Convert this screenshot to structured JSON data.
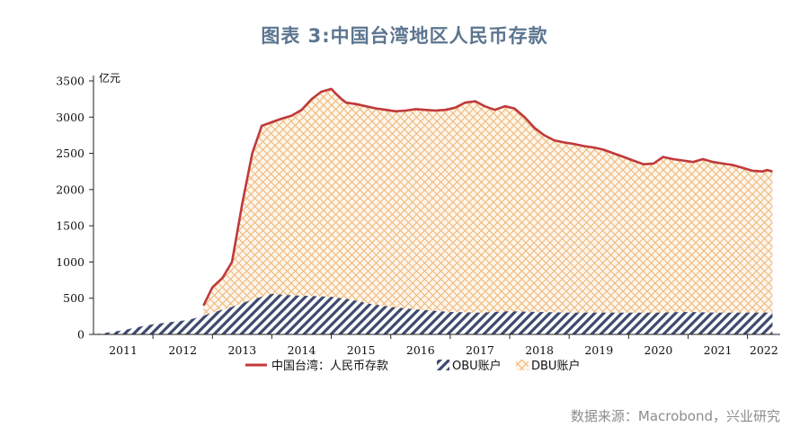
{
  "title": "图表 3:中国台湾地区人民币存款",
  "source": "数据来源：Macrobond，兴业研究",
  "colors": {
    "total": "#c0393b",
    "obu": "#3e4a6e",
    "dbu": "#f0b878",
    "axis": "#222222"
  },
  "chart_data": {
    "type": "area",
    "ylabel": "亿元",
    "ylim": [
      0,
      3500
    ],
    "yticks": [
      0,
      500,
      1000,
      1500,
      2000,
      2500,
      3000,
      3500
    ],
    "xlim": [
      2011.0,
      2022.55
    ],
    "xtick_labels": [
      "2011",
      "2012",
      "2013",
      "2014",
      "2015",
      "2016",
      "2017",
      "2018",
      "2019",
      "2020",
      "2021",
      "2022"
    ],
    "legend": [
      "中国台湾：人民币存款",
      "OBU账户",
      "DBU账户"
    ],
    "legend_position": "bottom",
    "total_deposits": {
      "name": "中国台湾：人民币存款",
      "x": [
        2012.85,
        2013.0,
        2013.17,
        2013.33,
        2013.5,
        2013.67,
        2013.83,
        2014.0,
        2014.17,
        2014.33,
        2014.5,
        2014.67,
        2014.83,
        2015.0,
        2015.08,
        2015.17,
        2015.25,
        2015.42,
        2015.58,
        2015.75,
        2015.92,
        2016.08,
        2016.25,
        2016.42,
        2016.58,
        2016.75,
        2016.92,
        2017.08,
        2017.25,
        2017.42,
        2017.58,
        2017.75,
        2017.92,
        2018.08,
        2018.25,
        2018.42,
        2018.58,
        2018.75,
        2018.92,
        2019.08,
        2019.25,
        2019.42,
        2019.58,
        2019.75,
        2019.92,
        2020.08,
        2020.25,
        2020.42,
        2020.58,
        2020.75,
        2020.92,
        2021.08,
        2021.25,
        2021.42,
        2021.58,
        2021.75,
        2021.92,
        2022.08,
        2022.25,
        2022.33,
        2022.42
      ],
      "y": [
        400,
        650,
        780,
        1000,
        1800,
        2500,
        2880,
        2930,
        2980,
        3020,
        3100,
        3250,
        3350,
        3390,
        3320,
        3250,
        3200,
        3180,
        3150,
        3120,
        3100,
        3080,
        3090,
        3110,
        3100,
        3090,
        3100,
        3130,
        3200,
        3220,
        3150,
        3100,
        3150,
        3120,
        3000,
        2850,
        2750,
        2680,
        2650,
        2630,
        2600,
        2580,
        2550,
        2500,
        2450,
        2400,
        2350,
        2360,
        2450,
        2420,
        2400,
        2380,
        2420,
        2380,
        2360,
        2340,
        2300,
        2260,
        2250,
        2270,
        2250
      ]
    },
    "obu": {
      "name": "OBU账户",
      "x": [
        2011.0,
        2011.2,
        2011.5,
        2011.8,
        2012.0,
        2012.3,
        2012.6,
        2012.85,
        2013.0,
        2013.33,
        2013.67,
        2014.0,
        2014.33,
        2014.67,
        2015.0,
        2015.33,
        2015.67,
        2016.0,
        2016.5,
        2017.0,
        2017.5,
        2018.0,
        2018.5,
        2019.0,
        2019.5,
        2020.0,
        2020.5,
        2021.0,
        2021.5,
        2022.0,
        2022.42
      ],
      "y": [
        0,
        20,
        60,
        110,
        140,
        170,
        200,
        260,
        300,
        380,
        480,
        560,
        540,
        530,
        520,
        480,
        420,
        380,
        340,
        310,
        300,
        320,
        310,
        300,
        300,
        300,
        300,
        310,
        300,
        300,
        300
      ]
    }
  }
}
